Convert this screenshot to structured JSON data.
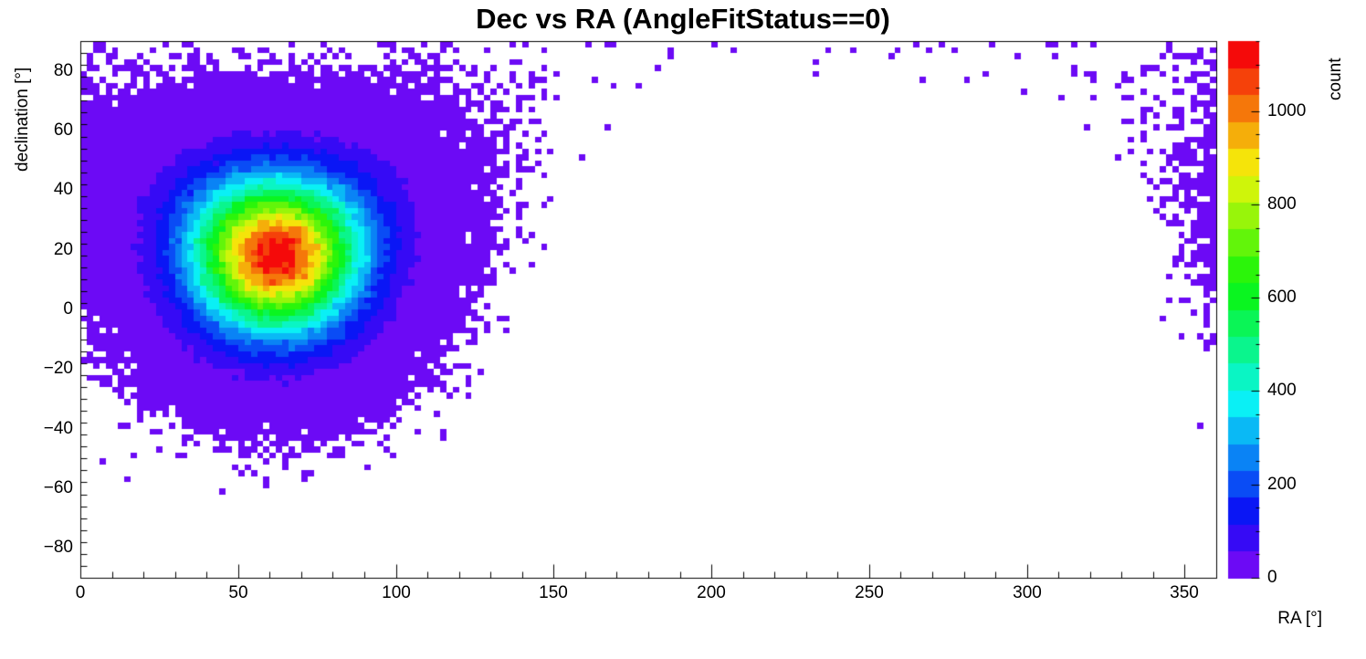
{
  "title": "Dec vs RA (AngleFitStatus==0)",
  "axes": {
    "x": {
      "label": "RA [°]",
      "min": 0,
      "max": 360,
      "tick_values": [
        0,
        50,
        100,
        150,
        200,
        250,
        300,
        350
      ],
      "tick_labels": [
        "0",
        "50",
        "100",
        "150",
        "200",
        "250",
        "300",
        "350"
      ],
      "minor_step": 10
    },
    "y": {
      "label": "declination [°]",
      "min": -90,
      "max": 90,
      "tick_values": [
        80,
        60,
        40,
        20,
        0,
        -20,
        -40,
        -60,
        -80
      ],
      "tick_labels": [
        "80",
        "60",
        "40",
        "20",
        "0",
        "−20",
        "−40",
        "−60",
        "−80"
      ],
      "minor_step": 4
    },
    "z": {
      "label": "count",
      "min": 0,
      "max": 1150,
      "tick_values": [
        0,
        200,
        400,
        600,
        800,
        1000
      ],
      "tick_labels": [
        "0",
        "200",
        "400",
        "600",
        "800",
        "1000"
      ],
      "minor_step": 50
    }
  },
  "chart_data": {
    "type": "heatmap",
    "title": "Dec vs RA (AngleFitStatus==0)",
    "xlabel": "RA [°]",
    "ylabel": "declination [°]",
    "zlabel": "count",
    "x_range": [
      0,
      360
    ],
    "y_range": [
      -90,
      90
    ],
    "z_range": [
      0,
      1150
    ],
    "bin_size_deg": 2,
    "grid": false,
    "legend": "colorbar-right",
    "distribution": {
      "model": "gaussian_on_sphere",
      "center_ra_deg": 62,
      "center_dec_deg": 18,
      "sigma_deg": 17,
      "peak_count": 1150,
      "max_angular_extent_deg": 88,
      "note": "2D histogram: dense Gaussian hotspot centered near RA 62°, Dec 18° with peak ≈1150 counts (red core), concentric rainbow rings (orange→yellow→green→cyan→blue) out to ≈40° angular radius, solid violet halo to ≈55°, then sparse violet scatter out to ≈88° angular distance, producing a scatter band along Dec ≈ +78…90° at all RA and a wrap-around sparse tail at RA ≈ 300–360° reaching down to Dec ≈ −50°; the region around RA 150–300° below Dec ≈ 60° is empty (white)."
    },
    "colorbar": {
      "ticks": [
        0,
        200,
        400,
        600,
        800,
        1000
      ],
      "max": 1150,
      "discrete_bands": 20,
      "colors_bottom_to_top": [
        "violet",
        "blue",
        "cyan",
        "green",
        "yellow",
        "orange",
        "red"
      ]
    }
  },
  "palette": {
    "steps": 20,
    "hue_start": 265,
    "hue_end": 0,
    "saturation": 92,
    "lightness": 50
  },
  "render": {
    "seed": 1337
  }
}
